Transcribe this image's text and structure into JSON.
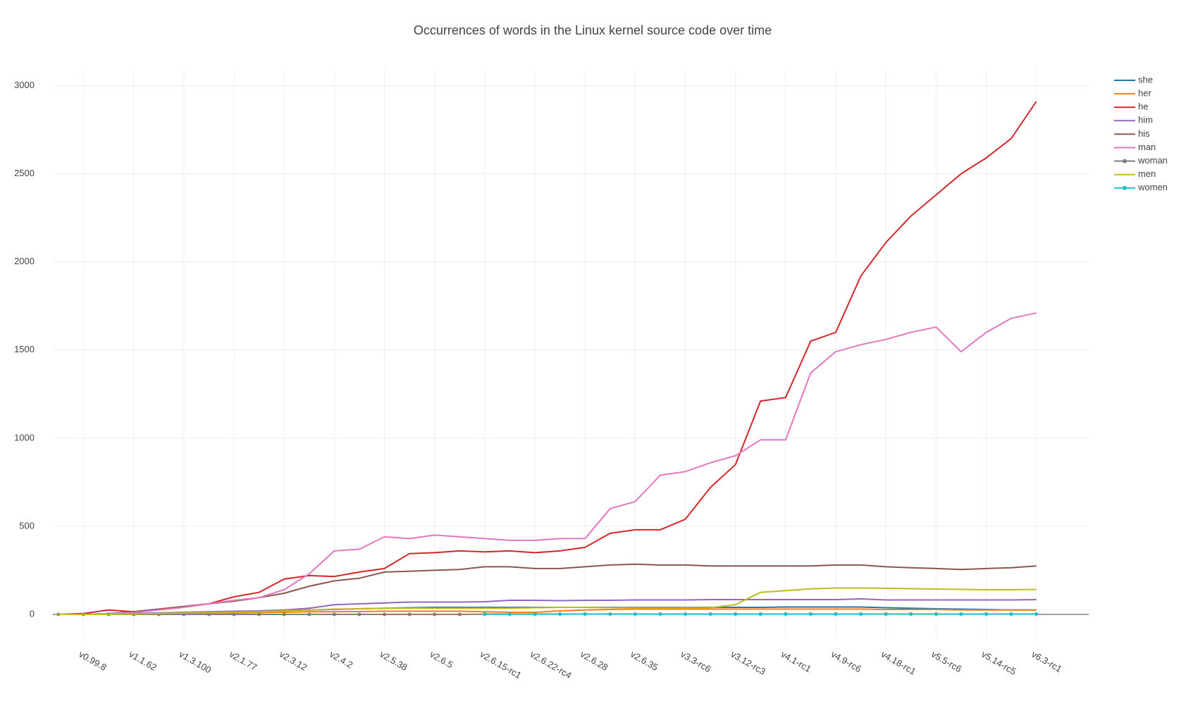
{
  "chart_data": {
    "type": "line",
    "title": "Occurrences of words in the Linux kernel source code over time",
    "categories": [
      null,
      "v0.99.8",
      null,
      "v1.1.62",
      null,
      "v1.3.100",
      null,
      "v2.1.77",
      null,
      "v2.3.12",
      null,
      "v2.4.2",
      null,
      "v2.5.38",
      null,
      "v2.6.5",
      null,
      "v2.6.15-rc1",
      null,
      "v2.6.22-rc4",
      null,
      "v2.6.28",
      null,
      "v2.6.35",
      null,
      "v3.3-rc6",
      null,
      "v3.12-rc3",
      null,
      "v4.1-rc1",
      null,
      "v4.9-rc6",
      null,
      "v4.18-rc1",
      null,
      "v5.5-rc6",
      null,
      "v5.14-rc5",
      null,
      "v6.3-rc1"
    ],
    "ylim": [
      -140,
      3090
    ],
    "yticks": [
      0,
      500,
      1000,
      1500,
      2000,
      2500,
      3000
    ],
    "grid": true,
    "legend": "right",
    "series": [
      {
        "name": "she",
        "color": "#1f77b4",
        "markers": false,
        "values": [
          0,
          0,
          2,
          5,
          8,
          10,
          12,
          15,
          18,
          22,
          25,
          28,
          32,
          35,
          38,
          40,
          40,
          40,
          40,
          40,
          40,
          40,
          40,
          40,
          40,
          40,
          40,
          40,
          40,
          42,
          42,
          42,
          42,
          38,
          35,
          32,
          30,
          28,
          25,
          25
        ]
      },
      {
        "name": "her",
        "color": "#ff7f0e",
        "markers": false,
        "values": [
          0,
          0,
          0,
          2,
          3,
          5,
          6,
          8,
          10,
          12,
          15,
          15,
          16,
          18,
          18,
          18,
          18,
          15,
          12,
          12,
          20,
          25,
          28,
          30,
          30,
          30,
          30,
          30,
          30,
          30,
          30,
          30,
          30,
          28,
          28,
          28,
          25,
          25,
          25,
          25
        ]
      },
      {
        "name": "he",
        "color": "#d62728",
        "markers": false,
        "values": [
          0,
          5,
          25,
          15,
          30,
          45,
          60,
          100,
          125,
          200,
          220,
          215,
          240,
          260,
          345,
          350,
          360,
          355,
          360,
          350,
          360,
          380,
          460,
          480,
          480,
          540,
          720,
          850,
          1210,
          1230,
          1550,
          1600,
          1920,
          2110,
          2260,
          2380,
          2500,
          2590,
          2700,
          2910
        ]
      },
      {
        "name": "him",
        "color": "#9467bd",
        "markers": false,
        "values": [
          0,
          0,
          2,
          5,
          8,
          12,
          15,
          18,
          20,
          25,
          35,
          55,
          60,
          65,
          70,
          70,
          70,
          72,
          80,
          80,
          78,
          80,
          80,
          82,
          82,
          82,
          84,
          84,
          84,
          84,
          84,
          84,
          88,
          82,
          82,
          82,
          82,
          82,
          82,
          84
        ]
      },
      {
        "name": "his",
        "color": "#8c564b",
        "markers": false,
        "values": [
          0,
          0,
          5,
          15,
          30,
          45,
          60,
          75,
          95,
          120,
          160,
          190,
          205,
          240,
          245,
          250,
          255,
          270,
          270,
          260,
          260,
          270,
          280,
          285,
          280,
          280,
          275,
          275,
          275,
          275,
          275,
          280,
          280,
          270,
          265,
          260,
          255,
          260,
          265,
          275
        ]
      },
      {
        "name": "man",
        "color": "#e377c2",
        "markers": false,
        "values": [
          0,
          0,
          5,
          10,
          25,
          40,
          60,
          80,
          95,
          140,
          230,
          360,
          370,
          440,
          430,
          450,
          440,
          430,
          420,
          420,
          430,
          430,
          600,
          640,
          790,
          810,
          860,
          900,
          990,
          990,
          1370,
          1490,
          1530,
          1560,
          1600,
          1630,
          1490,
          1600,
          1680,
          1710
        ]
      },
      {
        "name": "woman",
        "color": "#7f7f7f",
        "markers": true,
        "values": [
          0,
          0,
          0,
          0,
          0,
          0,
          0,
          0,
          0,
          0,
          0,
          0,
          0,
          0,
          0,
          0,
          0,
          1,
          1,
          1,
          2,
          2,
          2,
          2,
          2,
          2,
          2,
          2,
          2,
          2,
          2,
          2,
          2,
          2,
          2,
          2,
          2,
          2,
          2,
          2
        ]
      },
      {
        "name": "men",
        "color": "#bcbd22",
        "markers": false,
        "values": [
          0,
          0,
          0,
          2,
          5,
          8,
          10,
          12,
          15,
          20,
          25,
          30,
          32,
          35,
          35,
          35,
          35,
          35,
          35,
          38,
          40,
          40,
          38,
          38,
          38,
          38,
          38,
          55,
          125,
          135,
          145,
          150,
          150,
          148,
          146,
          144,
          142,
          140,
          140,
          142
        ]
      },
      {
        "name": "women",
        "color": "#17becf",
        "markers": true,
        "values": [
          null,
          null,
          null,
          null,
          null,
          null,
          null,
          null,
          null,
          null,
          null,
          null,
          null,
          null,
          null,
          null,
          null,
          2,
          2,
          2,
          2,
          2,
          2,
          2,
          2,
          2,
          2,
          2,
          2,
          2,
          2,
          2,
          2,
          2,
          2,
          2,
          2,
          2,
          2,
          2
        ]
      }
    ]
  }
}
